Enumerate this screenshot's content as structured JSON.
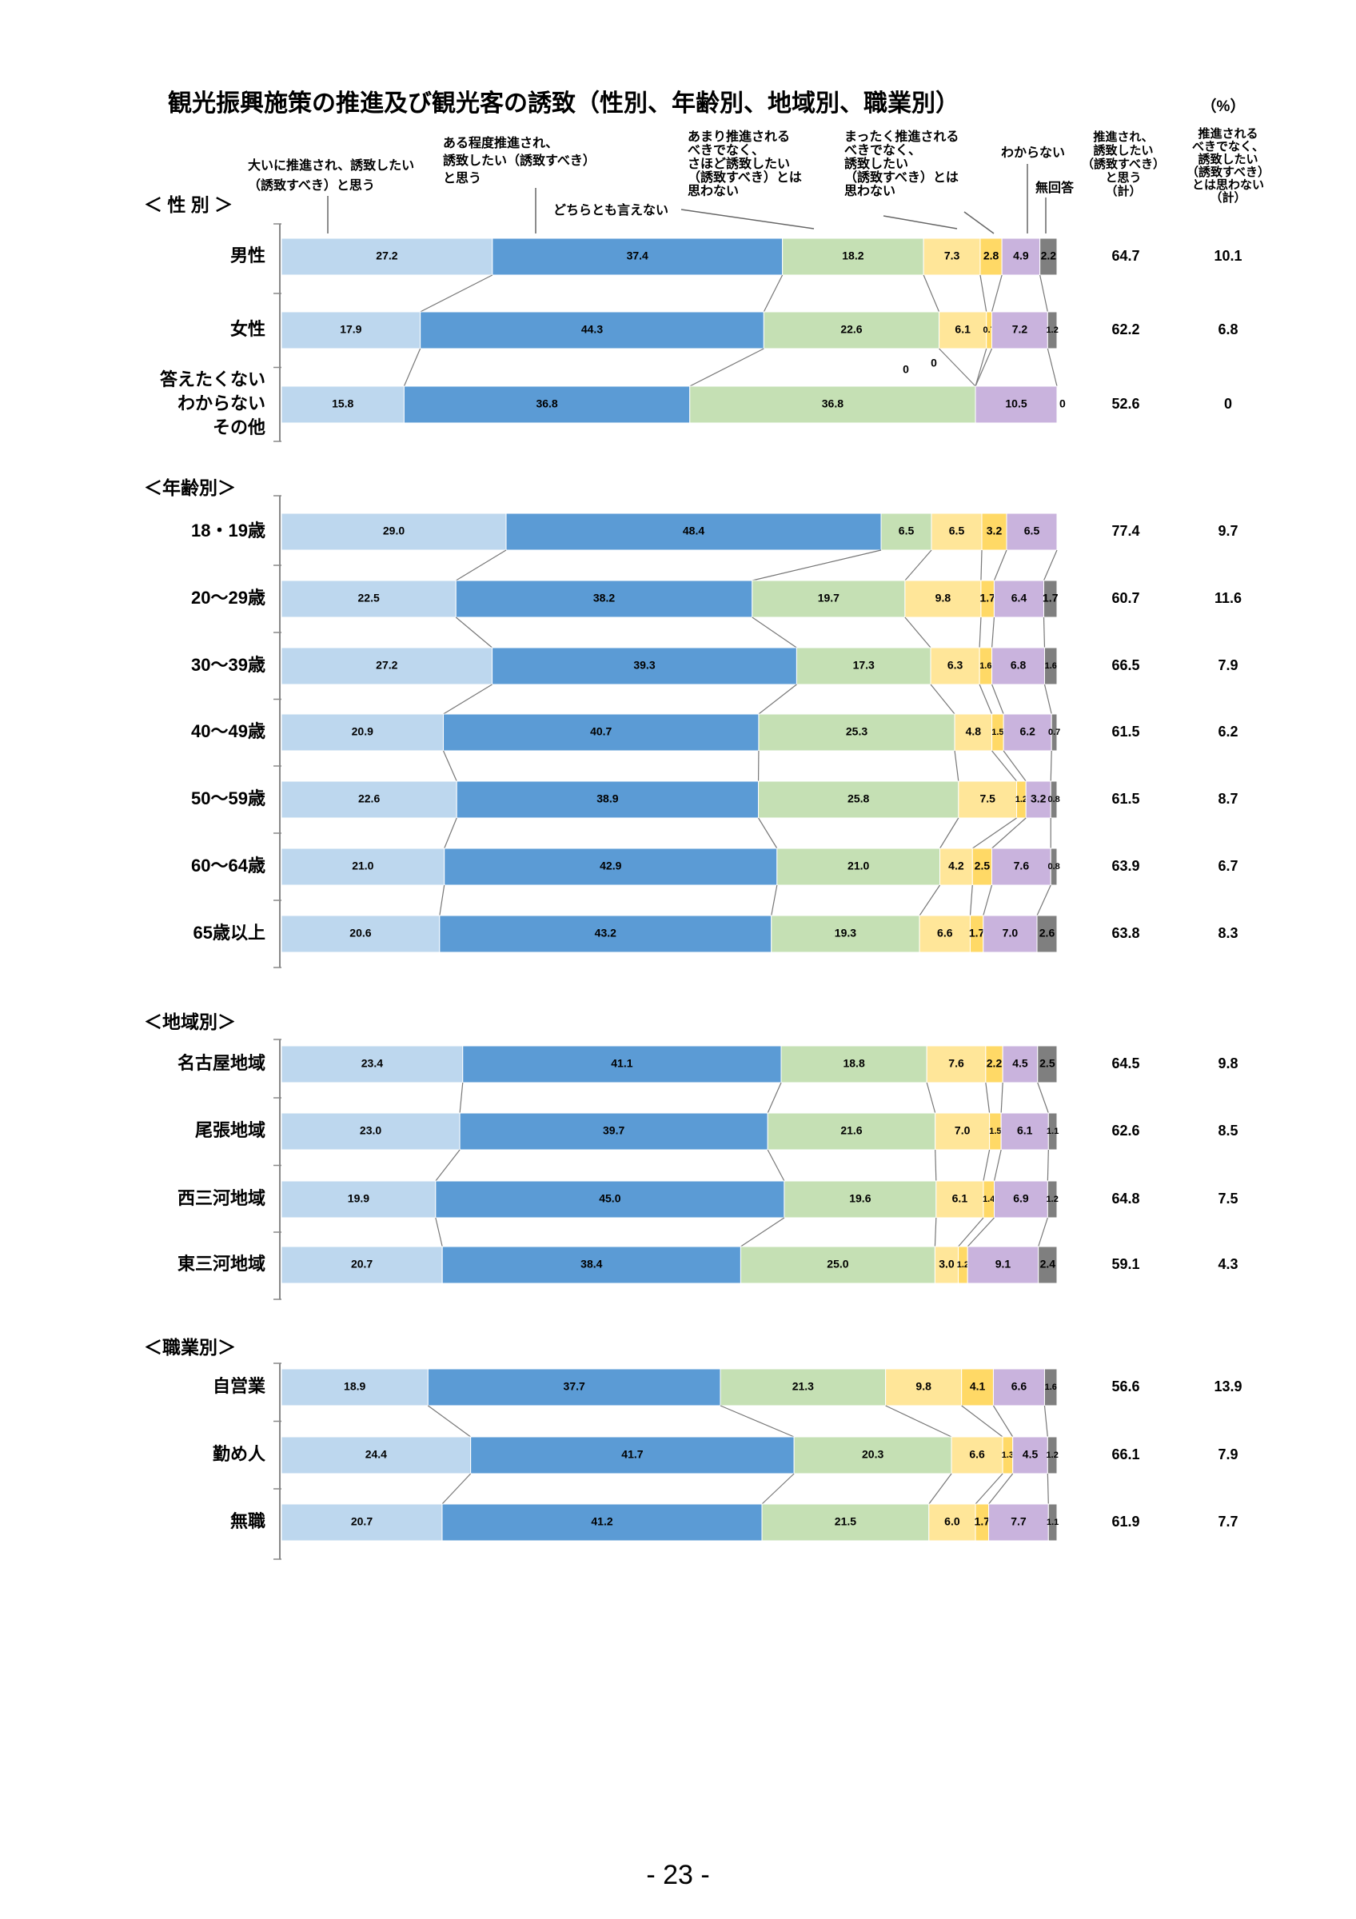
{
  "title": "観光振興施策の推進及び観光客の誘致（性別、年齢別、地域別、職業別）",
  "unit": "（%）",
  "legend": [
    {
      "label": "大いに推進され、誘致したい（誘致すべき）と思う",
      "color": "#bdd7ee"
    },
    {
      "label": "ある程度推進され、誘致したい（誘致すべき）と思う",
      "color": "#5b9bd5"
    },
    {
      "label": "どちらとも言えない",
      "color": "#c5e0b4"
    },
    {
      "label": "あまり推進されるべきでなく、さほど誘致したい（誘致すべき）とは思わない",
      "color": "#ffe699"
    },
    {
      "label": "まったく推進されるべきでなく、誘致したい（誘致すべき）とは思わない",
      "color": "#ffd966"
    },
    {
      "label": "わからない",
      "color": "#c9b3dd"
    },
    {
      "label": "無回答",
      "color": "#7f7f7f"
    }
  ],
  "column_headers": [
    "推進され、誘致したい（誘致すべき）と思う（計）",
    "推進されるべきでなく、誘致したい（誘致すべき）とは思わない（計）"
  ],
  "chart_data": {
    "type": "bar",
    "orientation": "horizontal-stacked-100",
    "title": "観光振興施策の推進及び観光客の誘致（性別、年齢別、地域別、職業別）",
    "groups": [
      {
        "name": "＜ 性 別 ＞",
        "rows": [
          {
            "category": "男性",
            "values": [
              27.2,
              37.4,
              18.2,
              7.3,
              2.8,
              4.9,
              2.2
            ],
            "total_yes": "64.7",
            "total_no": "10.1"
          },
          {
            "category": "女性",
            "values": [
              17.9,
              44.3,
              22.6,
              6.1,
              0.7,
              7.2,
              1.2
            ],
            "total_yes": "62.2",
            "total_no": "6.8"
          },
          {
            "category": "答えたくない わからない その他",
            "values": [
              15.8,
              36.8,
              36.8,
              0,
              0,
              10.5,
              0
            ],
            "total_yes": "52.6",
            "total_no": "0"
          }
        ]
      },
      {
        "name": "＜年齢別＞",
        "rows": [
          {
            "category": "18・19歳",
            "values": [
              29.0,
              48.4,
              6.5,
              6.5,
              3.2,
              6.5,
              0
            ],
            "total_yes": "77.4",
            "total_no": "9.7"
          },
          {
            "category": "20～29歳",
            "values": [
              22.5,
              38.2,
              19.7,
              9.8,
              1.7,
              6.4,
              1.7
            ],
            "total_yes": "60.7",
            "total_no": "11.6"
          },
          {
            "category": "30～39歳",
            "values": [
              27.2,
              39.3,
              17.3,
              6.3,
              1.6,
              6.8,
              1.6
            ],
            "total_yes": "66.5",
            "total_no": "7.9"
          },
          {
            "category": "40～49歳",
            "values": [
              20.9,
              40.7,
              25.3,
              4.8,
              1.5,
              6.2,
              0.7
            ],
            "total_yes": "61.5",
            "total_no": "6.2"
          },
          {
            "category": "50～59歳",
            "values": [
              22.6,
              38.9,
              25.8,
              7.5,
              1.2,
              3.2,
              0.8
            ],
            "total_yes": "61.5",
            "total_no": "8.7"
          },
          {
            "category": "60～64歳",
            "values": [
              21.0,
              42.9,
              21.0,
              4.2,
              2.5,
              7.6,
              0.8
            ],
            "total_yes": "63.9",
            "total_no": "6.7"
          },
          {
            "category": "65歳以上",
            "values": [
              20.6,
              43.2,
              19.3,
              6.6,
              1.7,
              7.0,
              2.6
            ],
            "total_yes": "63.8",
            "total_no": "8.3"
          }
        ]
      },
      {
        "name": "＜地域別＞",
        "rows": [
          {
            "category": "名古屋地域",
            "values": [
              23.4,
              41.1,
              18.8,
              7.6,
              2.2,
              4.5,
              2.5
            ],
            "total_yes": "64.5",
            "total_no": "9.8"
          },
          {
            "category": "尾張地域",
            "values": [
              23.0,
              39.7,
              21.6,
              7.0,
              1.5,
              6.1,
              1.1
            ],
            "total_yes": "62.6",
            "total_no": "8.5"
          },
          {
            "category": "西三河地域",
            "values": [
              19.9,
              45.0,
              19.6,
              6.1,
              1.4,
              6.9,
              1.2
            ],
            "total_yes": "64.8",
            "total_no": "7.5"
          },
          {
            "category": "東三河地域",
            "values": [
              20.7,
              38.4,
              25.0,
              3.0,
              1.2,
              9.1,
              2.4
            ],
            "total_yes": "59.1",
            "total_no": "4.3"
          }
        ]
      },
      {
        "name": "＜職業別＞",
        "rows": [
          {
            "category": "自営業",
            "values": [
              18.9,
              37.7,
              21.3,
              9.8,
              4.1,
              6.6,
              1.6
            ],
            "total_yes": "56.6",
            "total_no": "13.9"
          },
          {
            "category": "勤め人",
            "values": [
              24.4,
              41.7,
              20.3,
              6.6,
              1.3,
              4.5,
              1.2
            ],
            "total_yes": "66.1",
            "total_no": "7.9"
          },
          {
            "category": "無職",
            "values": [
              20.7,
              41.2,
              21.5,
              6.0,
              1.7,
              7.7,
              1.1
            ],
            "total_yes": "61.9",
            "total_no": "7.7"
          }
        ]
      }
    ]
  },
  "page_number": "- 23 -"
}
